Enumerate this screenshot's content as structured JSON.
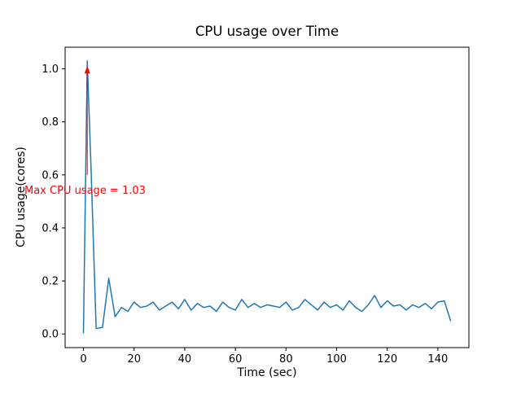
{
  "chart_data": {
    "type": "line",
    "title": "CPU usage over Time",
    "xlabel": "Time (sec)",
    "ylabel": "CPU usage(cores)",
    "xlim": [
      -7.25,
      152.25
    ],
    "ylim": [
      -0.0515,
      1.0815
    ],
    "xticks": [
      0,
      20,
      40,
      60,
      80,
      100,
      120,
      140
    ],
    "yticks": [
      0.0,
      0.2,
      0.4,
      0.6,
      0.8,
      1.0
    ],
    "ytick_labels": [
      "0.0",
      "0.2",
      "0.4",
      "0.6",
      "0.8",
      "1.0"
    ],
    "grid": false,
    "legend_position": "none",
    "line_color": "#1f77b4",
    "axes_color": "#000000",
    "background": "#ffffff",
    "series": [
      {
        "name": "CPU usage",
        "x": [
          0,
          1.5,
          3,
          5,
          7.5,
          10,
          12.5,
          15,
          17.5,
          20,
          22.5,
          25,
          27.5,
          30,
          32.5,
          35,
          37.5,
          40,
          42.5,
          45,
          47.5,
          50,
          52.5,
          55,
          57.5,
          60,
          62.5,
          65,
          67.5,
          70,
          72.5,
          75,
          77.5,
          80,
          82.5,
          85,
          87.5,
          90,
          92.5,
          95,
          97.5,
          100,
          102.5,
          105,
          107.5,
          110,
          112.5,
          115,
          117.5,
          120,
          122.5,
          125,
          127.5,
          130,
          132.5,
          135,
          137.5,
          140,
          142.5,
          145
        ],
        "y": [
          0.005,
          1.03,
          0.62,
          0.02,
          0.025,
          0.21,
          0.065,
          0.1,
          0.085,
          0.12,
          0.1,
          0.105,
          0.12,
          0.09,
          0.105,
          0.12,
          0.095,
          0.13,
          0.09,
          0.115,
          0.1,
          0.105,
          0.085,
          0.12,
          0.1,
          0.09,
          0.13,
          0.1,
          0.115,
          0.1,
          0.11,
          0.105,
          0.1,
          0.12,
          0.09,
          0.1,
          0.13,
          0.11,
          0.09,
          0.12,
          0.1,
          0.11,
          0.09,
          0.125,
          0.1,
          0.085,
          0.11,
          0.145,
          0.1,
          0.125,
          0.105,
          0.11,
          0.09,
          0.11,
          0.1,
          0.115,
          0.095,
          0.12,
          0.125,
          0.05
        ]
      }
    ],
    "annotation": {
      "text": "Max CPU usage = 1.03",
      "value": 1.03,
      "color": "#ff0000",
      "arrow_x": 1.5,
      "arrow_y_from": 0.6,
      "arrow_y_to": 1.01
    }
  }
}
